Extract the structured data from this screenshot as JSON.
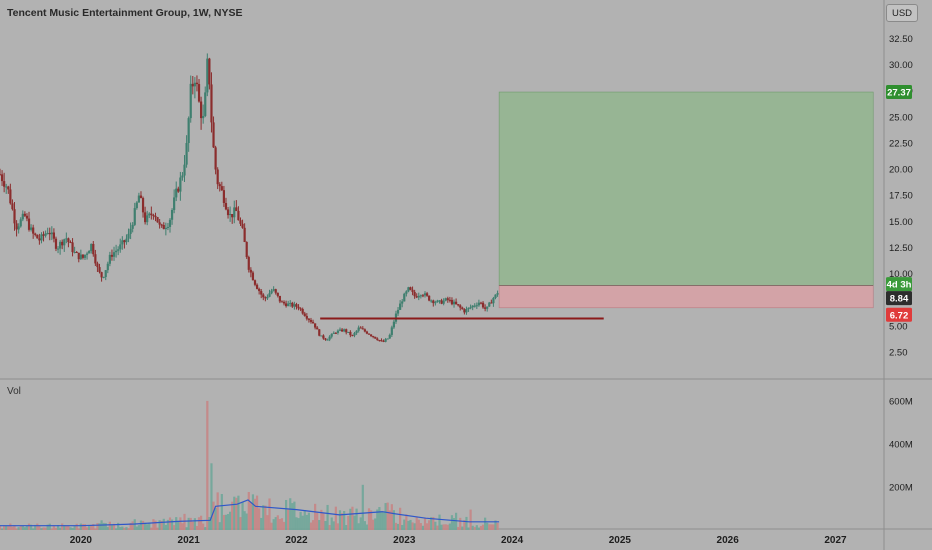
{
  "header": {
    "title": "Tencent Music Entertainment Group, 1W, NYSE",
    "currency": "USD"
  },
  "volume_label": "Vol",
  "colors": {
    "background": "#b2b2b2",
    "up": "#3f7f6f",
    "down": "#8b2d2d",
    "profit_zone": "#8db58a",
    "loss_zone": "#d8a0a5",
    "support_line": "#8b1a1a",
    "volume_ma": "#2f57c8"
  },
  "badges": {
    "target": "27.37",
    "countdown": "4d 3h",
    "current": "8.84",
    "stop": "6.72"
  },
  "chart_data": {
    "type": "candlestick",
    "price_axis": {
      "ticks": [
        "32.50",
        "30.00",
        "27.50",
        "25.00",
        "22.50",
        "20.00",
        "17.50",
        "15.00",
        "12.50",
        "10.00",
        "7.50",
        "5.00",
        "2.50"
      ],
      "range": [
        0,
        33.5
      ]
    },
    "volume_axis": {
      "ticks": [
        "600M",
        "400M",
        "200M"
      ],
      "range": [
        0,
        660
      ]
    },
    "time_axis": {
      "ticks": [
        "2020",
        "2021",
        "2022",
        "2023",
        "2024",
        "2025",
        "2026",
        "2027"
      ],
      "range": [
        2019.25,
        2027.45
      ]
    },
    "price_path": [
      [
        2019.25,
        19.5
      ],
      [
        2019.32,
        18.2
      ],
      [
        2019.4,
        14.5
      ],
      [
        2019.48,
        15.5
      ],
      [
        2019.55,
        13.8
      ],
      [
        2019.62,
        13.2
      ],
      [
        2019.7,
        14.2
      ],
      [
        2019.78,
        12.5
      ],
      [
        2019.86,
        13.5
      ],
      [
        2019.95,
        11.8
      ],
      [
        2020.02,
        11.5
      ],
      [
        2020.1,
        12.8
      ],
      [
        2020.16,
        10.2
      ],
      [
        2020.2,
        9.6
      ],
      [
        2020.28,
        11.8
      ],
      [
        2020.36,
        12.5
      ],
      [
        2020.44,
        13.5
      ],
      [
        2020.5,
        15.8
      ],
      [
        2020.54,
        17.5
      ],
      [
        2020.6,
        15.0
      ],
      [
        2020.68,
        16.0
      ],
      [
        2020.74,
        14.2
      ],
      [
        2020.82,
        15.0
      ],
      [
        2020.88,
        17.5
      ],
      [
        2020.94,
        19.5
      ],
      [
        2020.98,
        22.0
      ],
      [
        2021.02,
        27.5
      ],
      [
        2021.06,
        29.0
      ],
      [
        2021.1,
        26.0
      ],
      [
        2021.14,
        24.5
      ],
      [
        2021.18,
        31.0
      ],
      [
        2021.22,
        23.0
      ],
      [
        2021.26,
        19.0
      ],
      [
        2021.32,
        17.5
      ],
      [
        2021.38,
        15.5
      ],
      [
        2021.44,
        16.0
      ],
      [
        2021.5,
        14.0
      ],
      [
        2021.56,
        10.5
      ],
      [
        2021.62,
        9.0
      ],
      [
        2021.7,
        7.5
      ],
      [
        2021.78,
        8.5
      ],
      [
        2021.86,
        7.2
      ],
      [
        2021.94,
        7.0
      ],
      [
        2022.02,
        6.8
      ],
      [
        2022.1,
        5.8
      ],
      [
        2022.16,
        5.2
      ],
      [
        2022.22,
        4.0
      ],
      [
        2022.28,
        3.7
      ],
      [
        2022.36,
        4.4
      ],
      [
        2022.44,
        4.6
      ],
      [
        2022.52,
        4.0
      ],
      [
        2022.58,
        4.8
      ],
      [
        2022.66,
        4.3
      ],
      [
        2022.74,
        3.8
      ],
      [
        2022.8,
        3.4
      ],
      [
        2022.86,
        3.9
      ],
      [
        2022.92,
        6.0
      ],
      [
        2022.98,
        7.5
      ],
      [
        2023.04,
        8.5
      ],
      [
        2023.1,
        7.8
      ],
      [
        2023.16,
        8.2
      ],
      [
        2023.24,
        7.5
      ],
      [
        2023.32,
        7.2
      ],
      [
        2023.4,
        7.5
      ],
      [
        2023.48,
        7.0
      ],
      [
        2023.56,
        6.4
      ],
      [
        2023.62,
        6.8
      ],
      [
        2023.7,
        7.3
      ],
      [
        2023.76,
        6.5
      ],
      [
        2023.82,
        7.6
      ],
      [
        2023.86,
        8.0
      ],
      [
        2023.88,
        8.84
      ]
    ],
    "volume_bars": [
      [
        2019.35,
        30
      ],
      [
        2019.7,
        25
      ],
      [
        2020.2,
        45
      ],
      [
        2020.5,
        50
      ],
      [
        2020.88,
        60
      ],
      [
        2020.96,
        75
      ],
      [
        2021.06,
        55
      ],
      [
        2021.18,
        600
      ],
      [
        2021.22,
        310
      ],
      [
        2021.32,
        70
      ],
      [
        2021.38,
        85
      ],
      [
        2021.5,
        130
      ],
      [
        2021.62,
        145
      ],
      [
        2021.8,
        60
      ],
      [
        2022.1,
        70
      ],
      [
        2022.2,
        80
      ],
      [
        2022.48,
        65
      ],
      [
        2022.62,
        210
      ],
      [
        2022.88,
        120
      ],
      [
        2023.12,
        60
      ],
      [
        2023.48,
        80
      ],
      [
        2023.62,
        95
      ],
      [
        2023.88,
        45
      ]
    ],
    "volume_ma": [
      [
        2019.25,
        20
      ],
      [
        2020.0,
        20
      ],
      [
        2020.5,
        28
      ],
      [
        2020.9,
        40
      ],
      [
        2021.2,
        45
      ],
      [
        2021.25,
        110
      ],
      [
        2021.45,
        120
      ],
      [
        2021.55,
        140
      ],
      [
        2021.62,
        110
      ],
      [
        2022.0,
        95
      ],
      [
        2022.4,
        70
      ],
      [
        2022.8,
        85
      ],
      [
        2022.92,
        75
      ],
      [
        2023.2,
        55
      ],
      [
        2023.6,
        38
      ],
      [
        2023.88,
        38
      ]
    ],
    "support_line": {
      "from": 2022.22,
      "to": 2024.85,
      "value": 5.7
    },
    "position": {
      "from": 2023.88,
      "to": 2027.35,
      "target": 27.37,
      "entry": 8.84,
      "stop": 6.72
    }
  }
}
